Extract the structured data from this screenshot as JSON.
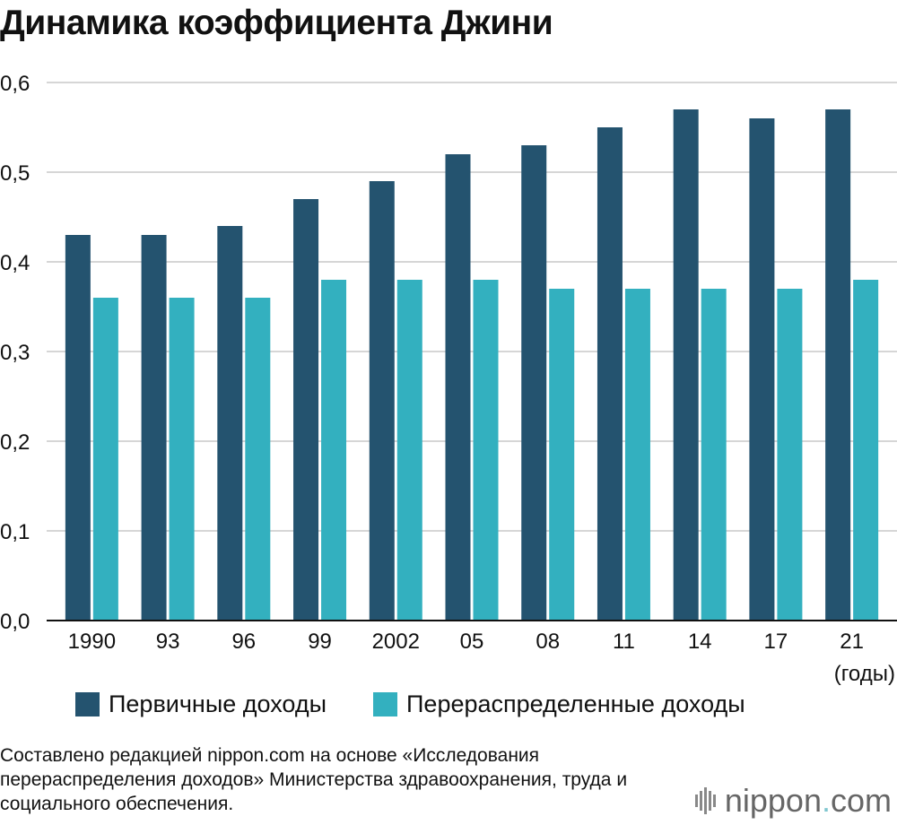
{
  "title": "Динамика коэффициента Джини",
  "chart_data": {
    "type": "bar",
    "title": "Динамика коэффициента Джини",
    "categories": [
      "1990",
      "93",
      "96",
      "99",
      "2002",
      "05",
      "08",
      "11",
      "14",
      "17",
      "21"
    ],
    "series": [
      {
        "name": "Первичные доходы",
        "color": "#24536f",
        "values": [
          0.43,
          0.43,
          0.44,
          0.47,
          0.49,
          0.52,
          0.53,
          0.55,
          0.57,
          0.56,
          0.57
        ]
      },
      {
        "name": "Перераспределенные доходы",
        "color": "#33b0bf",
        "values": [
          0.36,
          0.36,
          0.36,
          0.38,
          0.38,
          0.38,
          0.37,
          0.37,
          0.37,
          0.37,
          0.38
        ]
      }
    ],
    "ylim": [
      0,
      0.6
    ],
    "yticks": [
      "0,0",
      "0,1",
      "0,2",
      "0,3",
      "0,4",
      "0,5",
      "0,6"
    ],
    "xlabel": "(годы)",
    "ylabel": "",
    "grid": true,
    "legend": "bottom"
  },
  "legend": {
    "primary": "Первичные доходы",
    "redistributed": "Перераспределенные доходы"
  },
  "source": "Составлено редакцией nippon.com на основе «Исследования перераспределения доходов» Министерства здравоохранения, труда и социального обеспечения.",
  "brand": {
    "name": "nippon",
    "dot": ".",
    "tld": "com"
  }
}
